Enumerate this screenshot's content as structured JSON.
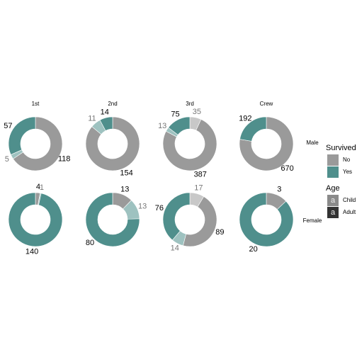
{
  "chart_data": {
    "type": "donut",
    "columns": [
      "1st",
      "2nd",
      "3rd",
      "Crew"
    ],
    "rows": [
      "Male",
      "Female"
    ],
    "survived": {
      "title": "Survived",
      "levels": [
        "No",
        "Yes"
      ],
      "colors": [
        "#9a9a9a",
        "#4f8f8c"
      ]
    },
    "age": {
      "title": "Age",
      "levels": [
        "Child",
        "Adult"
      ],
      "alpha": [
        0.55,
        1
      ],
      "key_colors": [
        "#8a8a8a",
        "#333333"
      ],
      "key_glyph": "a"
    },
    "values": [
      [
        [
          null,
          118,
          5,
          57
        ],
        [
          null,
          154,
          11,
          14
        ],
        [
          35,
          387,
          13,
          75
        ],
        [
          null,
          670,
          null,
          192
        ]
      ],
      [
        [
          null,
          4,
          1,
          140
        ],
        [
          null,
          13,
          13,
          80
        ],
        [
          17,
          89,
          14,
          76
        ],
        [
          null,
          3,
          null,
          20
        ]
      ]
    ]
  }
}
